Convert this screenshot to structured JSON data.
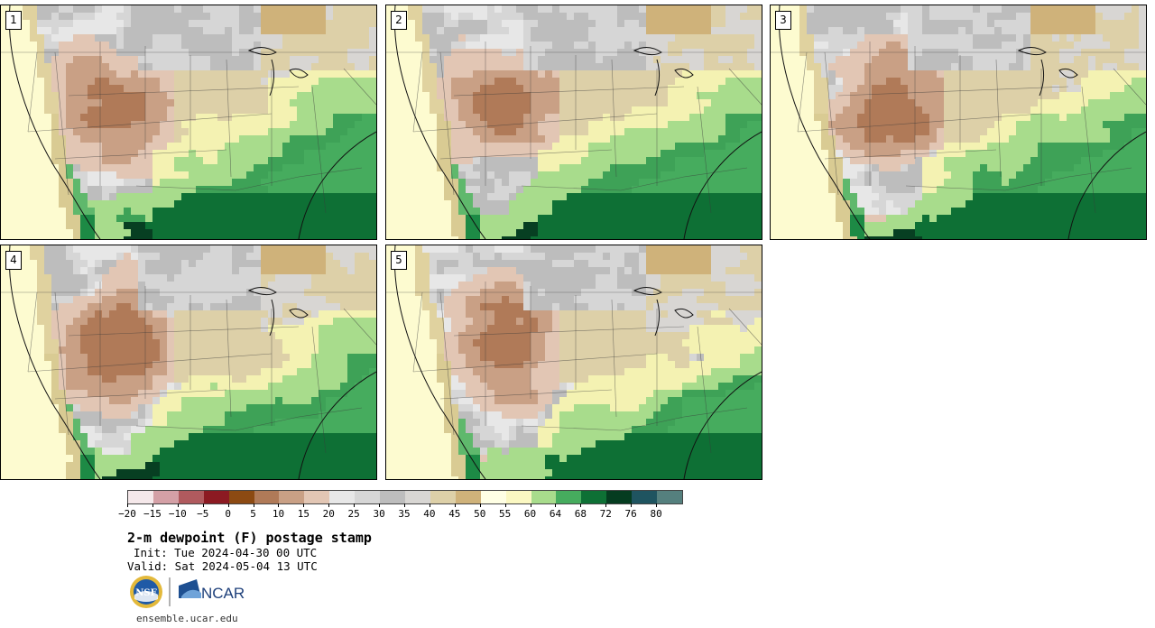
{
  "panels": [
    {
      "number": "1",
      "variant": 0
    },
    {
      "number": "2",
      "variant": 1
    },
    {
      "number": "3",
      "variant": 2
    },
    {
      "number": "4",
      "variant": 3
    },
    {
      "number": "5",
      "variant": 4
    }
  ],
  "colorbar": {
    "colors": [
      "#f5e8ea",
      "#d4a0a6",
      "#b05a5e",
      "#8c1a22",
      "#8c4a12",
      "#b07a58",
      "#c9a085",
      "#e2c6b4",
      "#e7e7e7",
      "#d6d6d6",
      "#bdbdbd",
      "#d8d6d3",
      "#ddd0a8",
      "#cfb27a",
      "#ffffe4",
      "#fbf8c2",
      "#a8dc8c",
      "#46ac5e",
      "#0e7035",
      "#053c20",
      "#1f5460",
      "#55807e"
    ],
    "tick_labels": [
      "−20",
      "−15",
      "−10",
      "−5",
      "0",
      "5",
      "10",
      "15",
      "20",
      "25",
      "30",
      "35",
      "40",
      "45",
      "50",
      "55",
      "60",
      "64",
      "68",
      "72",
      "76",
      "80"
    ]
  },
  "title": "2-m dewpoint (F) postage stamp",
  "init": "Init: Tue 2024-04-30 00 UTC",
  "valid": "Valid: Sat 2024-05-04 13 UTC",
  "logos": {
    "nsf_text": "NSF",
    "ncar_text": "NCAR"
  },
  "url": "ensemble.ucar.edu"
}
